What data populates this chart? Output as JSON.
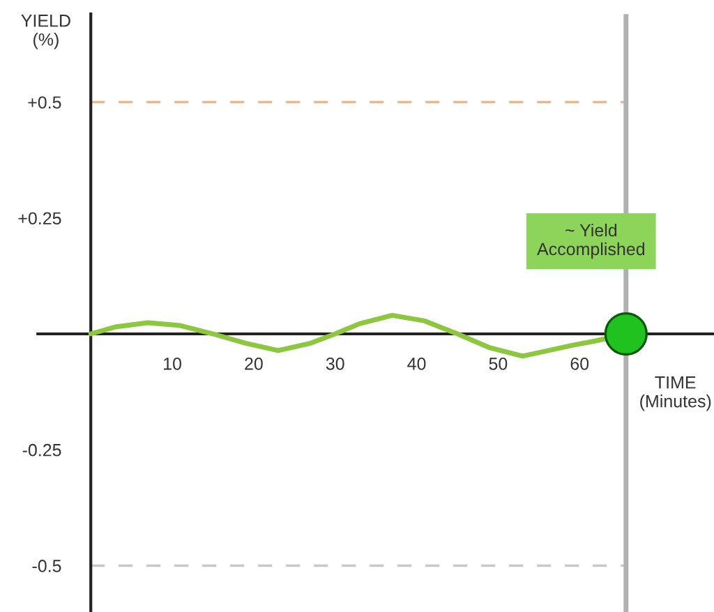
{
  "chart_data": {
    "type": "line",
    "xlabel": "TIME\n(Minutes)",
    "ylabel": "YIELD\n(%)",
    "xlim": [
      -6.5,
      76.5
    ],
    "ylim": [
      -0.6,
      0.69
    ],
    "xticks": [
      10,
      20,
      30,
      40,
      50,
      60
    ],
    "yticks": [
      {
        "value": 0.5,
        "label": "+0.5"
      },
      {
        "value": 0.25,
        "label": "+0.25"
      },
      {
        "value": -0.25,
        "label": "-0.25"
      },
      {
        "value": -0.5,
        "label": "-0.5"
      }
    ],
    "grid": false,
    "line_style": "solid",
    "series": [
      {
        "color": "#8dc63f",
        "x": [
          0,
          3,
          7,
          11,
          15,
          19,
          23,
          27,
          30,
          33,
          37,
          41,
          45,
          49,
          53,
          59,
          62,
          65.7
        ],
        "values": [
          0,
          0.015,
          0.024,
          0.018,
          0,
          -0.02,
          -0.036,
          -0.02,
          0,
          0.022,
          0.04,
          0.028,
          0,
          -0.03,
          -0.048,
          -0.025,
          -0.015,
          0
        ]
      },
      {
        "type": "scatter",
        "marker": "circle",
        "color": "#1fc21f",
        "x": [
          65.7
        ],
        "values": [
          0
        ]
      }
    ],
    "ref_lines": [
      {
        "axis": "y",
        "value": 0.5,
        "color": "#e8b98a",
        "line_style": "dashed"
      },
      {
        "axis": "y",
        "value": -0.5,
        "color": "#c8c8c8",
        "line_style": "dashed"
      },
      {
        "axis": "x",
        "value": 65.7,
        "color": "#b0b0b0",
        "line_style": "solid"
      }
    ],
    "annotations": [
      {
        "text": "~ Yield\nAccomplished",
        "x": 65.7,
        "y": 0.2
      }
    ]
  }
}
